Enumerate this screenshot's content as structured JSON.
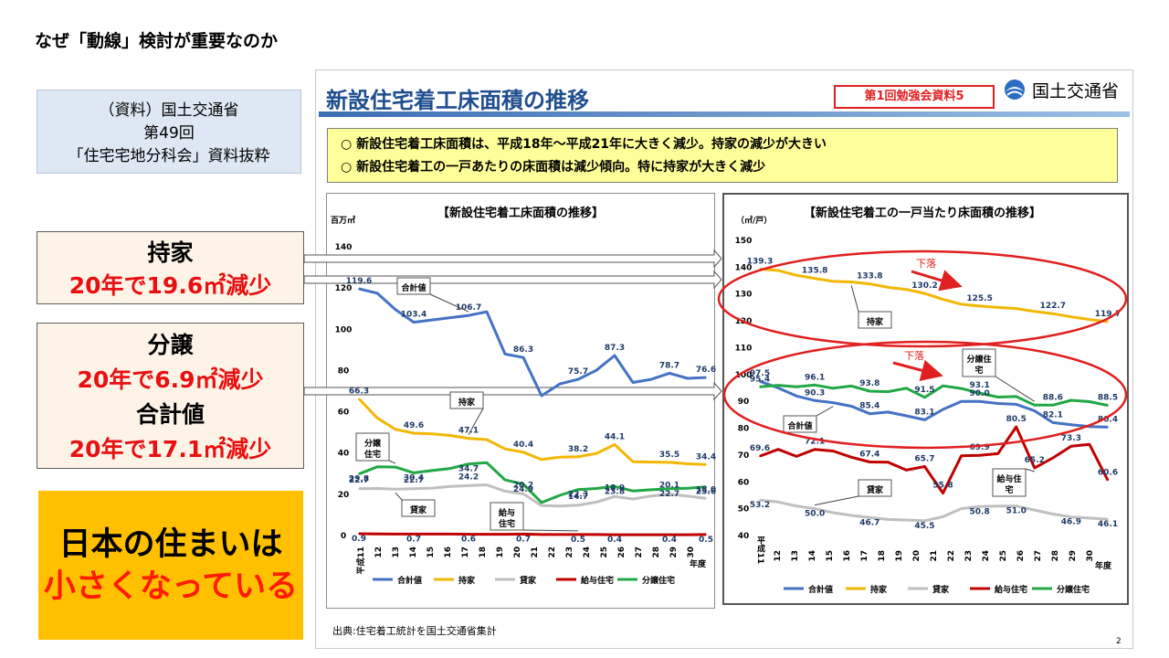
{
  "slide_title": "なぜ「動線」検討が重要なのか",
  "source_note": [
    "（資料）国土交通省",
    "第49回",
    "「住宅宅地分科会」資料抜粋"
  ],
  "callouts": {
    "mochiie": {
      "label": "持家",
      "detail": "20年で19.6㎡減少"
    },
    "bunjo": {
      "label": "分譲",
      "detail": "20年で6.9㎡減少"
    },
    "total": {
      "label": "合計値",
      "detail": "20年で17.1㎡減少"
    }
  },
  "message": {
    "line1": "日本の住まいは",
    "line2": "小さくなっている"
  },
  "doc": {
    "title": "新設住宅着工床面積の推移",
    "tag": "第1回勉強会資料5",
    "ministry": "国土交通省",
    "summary": [
      "○ 新設住宅着工床面積は、平成18年～平成21年に大きく減少。持家の減少が大きい",
      "○ 新設住宅着工の一戸あたりの床面積は減少傾向。特に持家が大きく減少"
    ],
    "source": "出典:住宅着工統計を国土交通省集計",
    "page": "2"
  },
  "colors": {
    "total": "#4472c4",
    "owned": "#f2b705",
    "rental": "#bfbfbf",
    "company": "#c00000",
    "condo": "#21a845",
    "accent_red": "#e02020"
  },
  "chart_data": [
    {
      "type": "line",
      "title": "【新設住宅着工床面積の推移】",
      "ylabel": "百万㎡",
      "xlabel": "年度",
      "x": [
        "平成11",
        "12",
        "13",
        "14",
        "15",
        "16",
        "17",
        "18",
        "19",
        "20",
        "21",
        "22",
        "23",
        "24",
        "25",
        "26",
        "27",
        "28",
        "29",
        "30"
      ],
      "ylim": [
        0,
        140
      ],
      "yticks": [
        0,
        20,
        40,
        60,
        80,
        100,
        120,
        140
      ],
      "grid": false,
      "legend_position": "bottom",
      "series": [
        {
          "name": "合計値",
          "color": "#4472c4",
          "values": [
            119.6,
            117.5,
            109.5,
            103.4,
            104.5,
            105.6,
            106.7,
            108.5,
            88.0,
            86.3,
            67.8,
            73.5,
            75.7,
            80.1,
            87.3,
            74.2,
            75.7,
            78.7,
            76.2,
            76.6
          ]
        },
        {
          "name": "持家",
          "color": "#f2b705",
          "values": [
            66.3,
            57.0,
            51.5,
            49.6,
            49.3,
            48.5,
            47.1,
            46.5,
            42.0,
            40.4,
            36.8,
            38.0,
            38.2,
            39.8,
            44.1,
            35.8,
            35.6,
            35.5,
            34.8,
            34.4
          ]
        },
        {
          "name": "貸家",
          "color": "#bfbfbf",
          "values": [
            22.7,
            22.8,
            22.5,
            22.7,
            23.0,
            23.8,
            24.2,
            24.6,
            21.5,
            20.2,
            14.5,
            14.3,
            14.7,
            16.2,
            18.9,
            17.7,
            19.2,
            20.1,
            19.1,
            18.0
          ]
        },
        {
          "name": "給与住宅",
          "color": "#c00000",
          "values": [
            0.9,
            0.8,
            0.7,
            0.7,
            0.7,
            0.7,
            0.6,
            0.6,
            0.6,
            0.7,
            0.5,
            0.5,
            0.5,
            0.5,
            0.4,
            0.4,
            0.4,
            0.4,
            0.4,
            0.5
          ]
        },
        {
          "name": "分譲住宅",
          "color": "#21a845",
          "values": [
            29.8,
            33.3,
            33.2,
            30.4,
            31.5,
            32.5,
            34.7,
            35.3,
            27.0,
            24.9,
            16.0,
            19.5,
            22.3,
            22.8,
            23.8,
            21.6,
            22.2,
            22.7,
            22.9,
            23.6
          ]
        }
      ],
      "labels": [
        {
          "series": 0,
          "index": 0,
          "text": "119.6"
        },
        {
          "series": 0,
          "index": 3,
          "text": "103.4"
        },
        {
          "series": 0,
          "index": 6,
          "text": "106.7"
        },
        {
          "series": 0,
          "index": 9,
          "text": "86.3"
        },
        {
          "series": 0,
          "index": 12,
          "text": "75.7"
        },
        {
          "series": 0,
          "index": 14,
          "text": "87.3"
        },
        {
          "series": 0,
          "index": 17,
          "text": "78.7"
        },
        {
          "series": 0,
          "index": 19,
          "text": "76.6"
        },
        {
          "series": 1,
          "index": 0,
          "text": "66.3"
        },
        {
          "series": 1,
          "index": 3,
          "text": "49.6"
        },
        {
          "series": 1,
          "index": 6,
          "text": "47.1"
        },
        {
          "series": 1,
          "index": 9,
          "text": "40.4"
        },
        {
          "series": 1,
          "index": 12,
          "text": "38.2"
        },
        {
          "series": 1,
          "index": 14,
          "text": "44.1"
        },
        {
          "series": 1,
          "index": 17,
          "text": "35.5"
        },
        {
          "series": 1,
          "index": 19,
          "text": "34.4"
        },
        {
          "series": 2,
          "index": 0,
          "text": "22.7"
        },
        {
          "series": 2,
          "index": 3,
          "text": "22.7"
        },
        {
          "series": 2,
          "index": 6,
          "text": "24.2"
        },
        {
          "series": 2,
          "index": 9,
          "text": "20.2"
        },
        {
          "series": 2,
          "index": 12,
          "text": "14.7"
        },
        {
          "series": 2,
          "index": 14,
          "text": "18.9"
        },
        {
          "series": 2,
          "index": 17,
          "text": "20.1"
        },
        {
          "series": 2,
          "index": 19,
          "text": "18.0"
        },
        {
          "series": 3,
          "index": 0,
          "text": "0.9"
        },
        {
          "series": 3,
          "index": 3,
          "text": "0.7"
        },
        {
          "series": 3,
          "index": 6,
          "text": "0.6"
        },
        {
          "series": 3,
          "index": 9,
          "text": "0.7"
        },
        {
          "series": 3,
          "index": 12,
          "text": "0.5"
        },
        {
          "series": 3,
          "index": 14,
          "text": "0.4"
        },
        {
          "series": 3,
          "index": 17,
          "text": "0.4"
        },
        {
          "series": 3,
          "index": 19,
          "text": "0.5"
        },
        {
          "series": 4,
          "index": 0,
          "text": "29.8"
        },
        {
          "series": 4,
          "index": 3,
          "text": "30.4"
        },
        {
          "series": 4,
          "index": 6,
          "text": "34.7"
        },
        {
          "series": 4,
          "index": 9,
          "text": "24.9"
        },
        {
          "series": 4,
          "index": 12,
          "text": "22.3"
        },
        {
          "series": 4,
          "index": 14,
          "text": "23.8"
        },
        {
          "series": 4,
          "index": 17,
          "text": "22.7"
        },
        {
          "series": 4,
          "index": 19,
          "text": "23.6"
        }
      ],
      "annotations": [
        {
          "text": [
            "合計値"
          ],
          "series": 0,
          "index": 6
        },
        {
          "text": [
            "持家"
          ],
          "series": 1,
          "index": 6
        },
        {
          "text": [
            "分譲",
            "住宅"
          ],
          "series": 4,
          "index": 2
        },
        {
          "text": [
            "貸家"
          ],
          "series": 2,
          "index": 2
        },
        {
          "text": [
            "給与",
            "住宅"
          ],
          "series": 3,
          "index": 12
        }
      ]
    },
    {
      "type": "line",
      "title": "【新設住宅着工の一戸当たり床面積の推移】",
      "ylabel": "（㎡/戸）",
      "xlabel": "年度",
      "x": [
        "平成11",
        "12",
        "13",
        "14",
        "15",
        "16",
        "17",
        "18",
        "19",
        "20",
        "21",
        "22",
        "23",
        "24",
        "25",
        "26",
        "27",
        "28",
        "29",
        "30"
      ],
      "ylim": [
        40,
        150
      ],
      "yticks": [
        40,
        50,
        60,
        70,
        80,
        90,
        100,
        110,
        120,
        130,
        140,
        150
      ],
      "grid": false,
      "legend_position": "bottom",
      "series": [
        {
          "name": "合計値",
          "color": "#4472c4",
          "values": [
            97.5,
            95.0,
            92.0,
            90.3,
            89.5,
            88.2,
            85.4,
            86.0,
            84.6,
            83.1,
            87.0,
            90.0,
            90.0,
            89.2,
            88.9,
            86.5,
            82.1,
            81.3,
            80.6,
            80.4
          ]
        },
        {
          "name": "持家",
          "color": "#f2b705",
          "values": [
            139.3,
            138.8,
            137.0,
            135.8,
            134.7,
            134.5,
            133.8,
            132.5,
            131.7,
            130.2,
            128.0,
            126.2,
            125.5,
            125.0,
            124.6,
            123.5,
            122.7,
            121.5,
            120.5,
            119.7
          ]
        },
        {
          "name": "貸家",
          "color": "#bfbfbf",
          "values": [
            53.2,
            52.5,
            51.0,
            50.0,
            48.5,
            47.5,
            46.7,
            46.0,
            45.8,
            45.5,
            47.0,
            50.0,
            50.8,
            51.0,
            51.0,
            49.5,
            48.0,
            46.9,
            46.5,
            46.1
          ]
        },
        {
          "name": "給与住宅",
          "color": "#c00000",
          "values": [
            69.6,
            72.1,
            69.5,
            72.1,
            71.5,
            69.2,
            67.4,
            67.3,
            64.4,
            65.7,
            55.8,
            69.7,
            69.9,
            70.5,
            80.5,
            65.2,
            68.9,
            73.3,
            74.0,
            60.6
          ]
        },
        {
          "name": "分譲住宅",
          "color": "#21a845",
          "values": [
            95.4,
            96.0,
            95.4,
            96.1,
            94.9,
            95.7,
            93.8,
            93.6,
            94.9,
            91.5,
            95.8,
            94.8,
            93.1,
            91.6,
            91.8,
            88.6,
            88.6,
            90.4,
            89.9,
            88.5
          ]
        }
      ],
      "labels": [
        {
          "series": 0,
          "index": 0,
          "text": "97.5"
        },
        {
          "series": 0,
          "index": 3,
          "text": "90.3"
        },
        {
          "series": 0,
          "index": 6,
          "text": "85.4"
        },
        {
          "series": 0,
          "index": 9,
          "text": "83.1"
        },
        {
          "series": 0,
          "index": 12,
          "text": "90.0"
        },
        {
          "series": 0,
          "index": 16,
          "text": "82.1"
        },
        {
          "series": 0,
          "index": 19,
          "text": "80.4"
        },
        {
          "series": 1,
          "index": 0,
          "text": "139.3"
        },
        {
          "series": 1,
          "index": 3,
          "text": "135.8"
        },
        {
          "series": 1,
          "index": 6,
          "text": "133.8"
        },
        {
          "series": 1,
          "index": 9,
          "text": "130.2"
        },
        {
          "series": 1,
          "index": 12,
          "text": "125.5"
        },
        {
          "series": 1,
          "index": 16,
          "text": "122.7"
        },
        {
          "series": 1,
          "index": 19,
          "text": "119.7"
        },
        {
          "series": 2,
          "index": 0,
          "text": "53.2"
        },
        {
          "series": 2,
          "index": 3,
          "text": "50.0"
        },
        {
          "series": 2,
          "index": 6,
          "text": "46.7"
        },
        {
          "series": 2,
          "index": 9,
          "text": "45.5"
        },
        {
          "series": 2,
          "index": 12,
          "text": "50.8"
        },
        {
          "series": 2,
          "index": 14,
          "text": "51.0"
        },
        {
          "series": 2,
          "index": 17,
          "text": "46.9"
        },
        {
          "series": 2,
          "index": 19,
          "text": "46.1"
        },
        {
          "series": 3,
          "index": 0,
          "text": "69.6"
        },
        {
          "series": 3,
          "index": 3,
          "text": "72.1"
        },
        {
          "series": 3,
          "index": 6,
          "text": "67.4"
        },
        {
          "series": 3,
          "index": 9,
          "text": "65.7"
        },
        {
          "series": 3,
          "index": 10,
          "text": "55.8"
        },
        {
          "series": 3,
          "index": 12,
          "text": "69.9"
        },
        {
          "series": 3,
          "index": 14,
          "text": "80.5"
        },
        {
          "series": 3,
          "index": 15,
          "text": "65.2"
        },
        {
          "series": 3,
          "index": 17,
          "text": "73.3"
        },
        {
          "series": 3,
          "index": 19,
          "text": "60.6"
        },
        {
          "series": 4,
          "index": 0,
          "text": "95.4"
        },
        {
          "series": 4,
          "index": 3,
          "text": "96.1"
        },
        {
          "series": 4,
          "index": 6,
          "text": "93.8"
        },
        {
          "series": 4,
          "index": 9,
          "text": "91.5"
        },
        {
          "series": 4,
          "index": 12,
          "text": "93.1"
        },
        {
          "series": 4,
          "index": 16,
          "text": "88.6"
        },
        {
          "series": 4,
          "index": 19,
          "text": "88.5"
        }
      ],
      "annotations": [
        {
          "text": [
            "持家"
          ],
          "series": 1,
          "index": 5
        },
        {
          "text": [
            "分譲住",
            "宅"
          ],
          "series": 4,
          "index": 15
        },
        {
          "text": [
            "合計値"
          ],
          "series": 0,
          "index": 4
        },
        {
          "text": [
            "貸家"
          ],
          "series": 2,
          "index": 3
        },
        {
          "text": [
            "給与住",
            "宅"
          ],
          "series": 3,
          "index": 15
        }
      ],
      "trend_notes": [
        "下落",
        "下落"
      ]
    }
  ]
}
